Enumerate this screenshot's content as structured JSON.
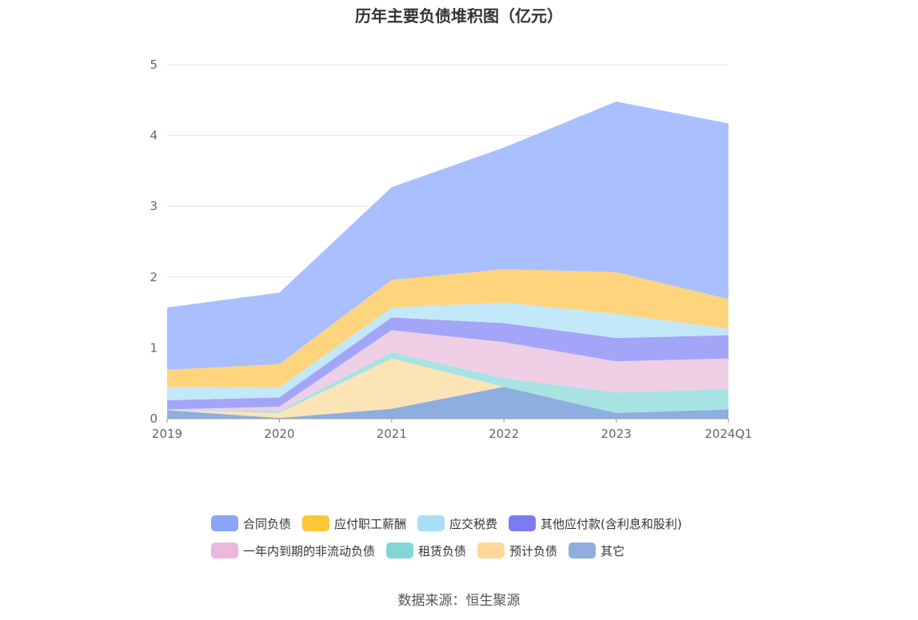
{
  "title": "历年主要负债堆积图（亿元）",
  "source": "数据来源：恒生聚源",
  "chart_data": {
    "type": "area",
    "stacked": true,
    "categories": [
      "2019",
      "2020",
      "2021",
      "2022",
      "2023",
      "2024Q1"
    ],
    "ylim": [
      0,
      5
    ],
    "yticks": [
      0,
      1,
      2,
      3,
      4,
      5
    ],
    "grid": true,
    "legend_position": "bottom",
    "series": [
      {
        "name": "其它",
        "color": "#8eaee0",
        "values": [
          0.12,
          0.01,
          0.14,
          0.45,
          0.08,
          0.13
        ]
      },
      {
        "name": "预计负债",
        "color": "#fde4b6",
        "values": [
          0,
          0.07,
          0.71,
          0,
          0,
          0
        ]
      },
      {
        "name": "租赁负债",
        "color": "#a8e3e3",
        "values": [
          0,
          0.03,
          0.09,
          0.12,
          0.29,
          0.29
        ]
      },
      {
        "name": "一年内到期的非流动负债",
        "color": "#efcfe6",
        "values": [
          0.01,
          0.06,
          0.31,
          0.51,
          0.44,
          0.43
        ]
      },
      {
        "name": "其他应付款(含利息和股利)",
        "color": "#a3a6f8",
        "values": [
          0.13,
          0.13,
          0.18,
          0.27,
          0.33,
          0.33
        ]
      },
      {
        "name": "应交税费",
        "color": "#c2e8fa",
        "values": [
          0.19,
          0.14,
          0.14,
          0.29,
          0.34,
          0.09
        ]
      },
      {
        "name": "应付职工薪酬",
        "color": "#fed57d",
        "values": [
          0.24,
          0.33,
          0.39,
          0.47,
          0.59,
          0.42
        ]
      },
      {
        "name": "合同负债",
        "color": "#aabffd",
        "values": [
          0.88,
          1.01,
          1.31,
          1.72,
          2.41,
          2.48
        ]
      }
    ]
  },
  "legend": {
    "row1": [
      {
        "label": "合同负债",
        "color": "#8aa6f6"
      },
      {
        "label": "应付职工薪酬",
        "color": "#fec63b"
      },
      {
        "label": "应交税费",
        "color": "#a8dff8"
      },
      {
        "label": "其他应付款(含利息和股利)",
        "color": "#7c7cf2"
      }
    ],
    "row2": [
      {
        "label": "一年内到期的非流动负债",
        "color": "#eab8dc"
      },
      {
        "label": "租赁负债",
        "color": "#82d6d6"
      },
      {
        "label": "预计负债",
        "color": "#fdd89a"
      },
      {
        "label": "其它",
        "color": "#8eaee0"
      }
    ]
  }
}
